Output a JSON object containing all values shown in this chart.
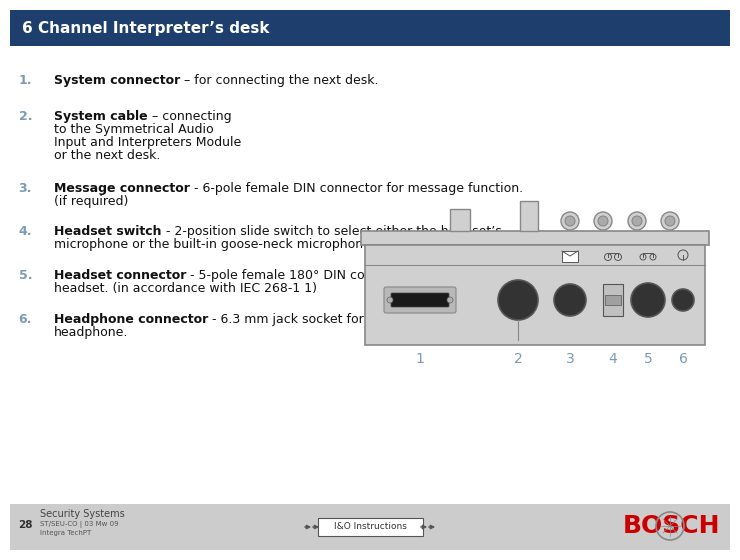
{
  "title": "6 Channel Interpreter’s desk",
  "title_bg": "#1e3f6e",
  "title_color": "#ffffff",
  "bg_color": "#ffffff",
  "footer_bg": "#cccccc",
  "items": [
    {
      "num": "1.",
      "bold": "System connector",
      "rest": " – for connecting the next desk.",
      "line2": ""
    },
    {
      "num": "2.",
      "bold": "System cable",
      "rest": " – connecting",
      "line2": "to the Symmetrical Audio",
      "line3": "Input and Interpreters Module",
      "line4": "or the next desk."
    },
    {
      "num": "3.",
      "bold": "Message connector",
      "rest": " - 6-pole female DIN connector for message function.",
      "line2": "(if required)"
    },
    {
      "num": "4.",
      "bold": "Headset switch",
      "rest": " - 2-position slide switch to select either the headset’s",
      "line2": "microphone or the built-in goose-neck microphone."
    },
    {
      "num": "5.",
      "bold": "Headset connector",
      "rest": " - 5-pole female 180° DIN connector for connecting a",
      "line2": "headset. (in accordance with IEC 268-1 1)"
    },
    {
      "num": "6.",
      "bold": "Headphone connector",
      "rest": " - 6.3 mm jack socket for connecting the",
      "line2": "headphone."
    }
  ],
  "footer_left_line1": "Security Systems",
  "footer_left_line2": "ST/SEU-CO | 03 Mw 09",
  "footer_left_line3": "Integra TechPT",
  "footer_center": "I&O Instructions",
  "footer_right": "BOSCH",
  "page_num": "28",
  "num_color": "#7a9ab5",
  "desk_color": "#d0d0d0",
  "desk_outline": "#888888",
  "desk_dark": "#333333",
  "desk_mid": "#aaaaaa"
}
